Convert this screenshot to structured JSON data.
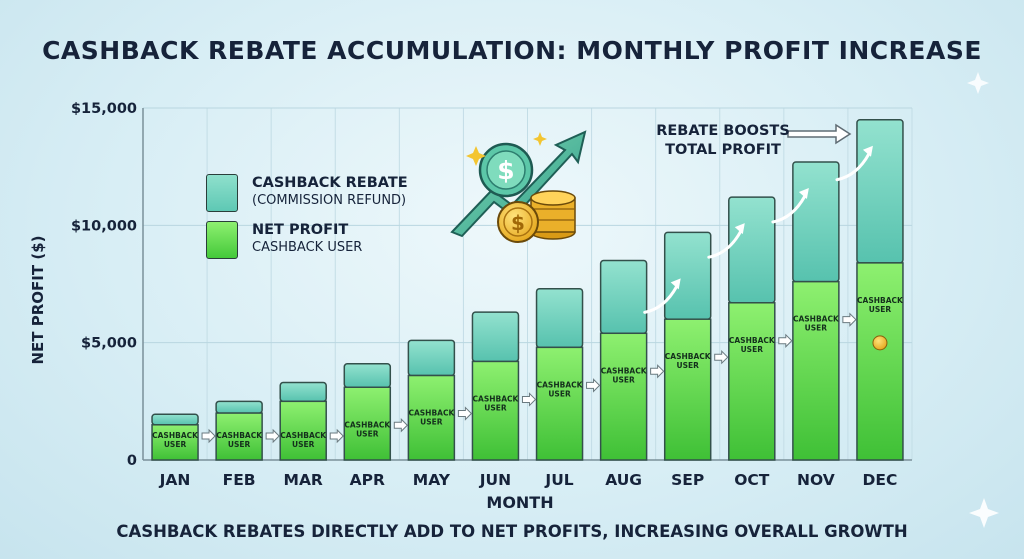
{
  "chart_data": {
    "type": "bar",
    "stacked": true,
    "title": "CASHBACK REBATE ACCUMULATION: MONTHLY PROFIT INCREASE",
    "subtitle": "CASHBACK REBATES DIRECTLY ADD TO NET PROFITS, INCREASING OVERALL GROWTH",
    "xlabel": "MONTH",
    "ylabel": "NET PROFIT ($)",
    "ylim": [
      0,
      15000
    ],
    "yticks": [
      {
        "value": 0,
        "label": "0"
      },
      {
        "value": 5000,
        "label": "$5,000"
      },
      {
        "value": 10000,
        "label": "$10,000"
      },
      {
        "value": 15000,
        "label": "$15,000"
      }
    ],
    "categories": [
      "JAN",
      "FEB",
      "MAR",
      "APR",
      "MAY",
      "JUN",
      "JUL",
      "AUG",
      "SEP",
      "OCT",
      "NOV",
      "DEC"
    ],
    "series": [
      {
        "name": "NET PROFIT",
        "color": "#5fd94a",
        "values": [
          1500,
          2000,
          2500,
          3100,
          3600,
          4200,
          4800,
          5400,
          6000,
          6700,
          7600,
          8400
        ]
      },
      {
        "name": "CASHBACK REBATE",
        "color": "#74d4c0",
        "values": [
          450,
          500,
          800,
          1000,
          1500,
          2100,
          2500,
          3100,
          3700,
          4500,
          5100,
          6100
        ]
      }
    ],
    "bar_label": "CASHBACK USER",
    "legend": [
      {
        "name": "CASHBACK REBATE",
        "sub": "(COMMISSION REFUND)"
      },
      {
        "name": "NET PROFIT",
        "sub": "CASHBACK USER"
      }
    ],
    "annotation": [
      "REBATE BOOSTS",
      "TOTAL PROFIT"
    ],
    "grid": true
  },
  "colors": {
    "profit_top": "#8ef070",
    "profit_bottom": "#3fc036",
    "rebate_top": "#8fe0cc",
    "rebate_bottom": "#57c2ae",
    "text": "#16233a",
    "grid": "#b9d6e0"
  }
}
